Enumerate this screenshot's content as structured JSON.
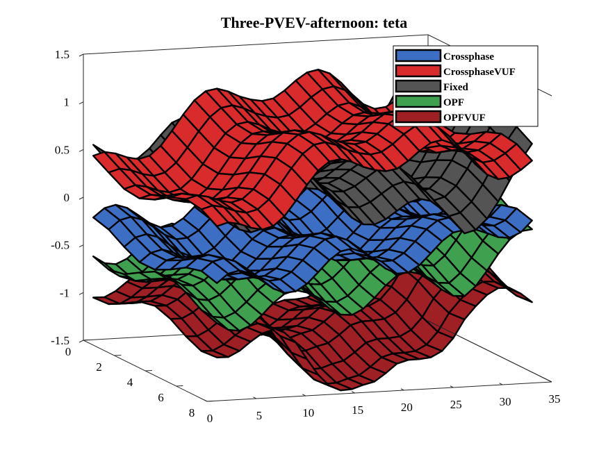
{
  "chart_data": {
    "type": "surface3d",
    "title": "Three-PVEV-afternoon: teta",
    "xlabel": "",
    "ylabel": "",
    "zlabel": "",
    "xlim": [
      0,
      35
    ],
    "ylim": [
      0,
      8
    ],
    "zlim": [
      -1.5,
      1.5
    ],
    "x_ticks": [
      "0",
      "5",
      "10",
      "15",
      "20",
      "25",
      "30",
      "35"
    ],
    "y_ticks": [
      "0",
      "2",
      "4",
      "6",
      "8"
    ],
    "z_ticks": [
      "1.5",
      "1",
      "0.5",
      "0",
      "-0.5",
      "-1",
      "-1.5"
    ],
    "legend_position": "top-right",
    "series": [
      {
        "name": "Crossphase",
        "color": "#3c6fc4",
        "levels": [
          -0.45,
          -0.3,
          -0.2,
          -0.1,
          0.35
        ]
      },
      {
        "name": "CrossphaseVUF",
        "color": "#d92b2b",
        "levels": [
          0.1,
          0.6,
          1.0,
          0.9,
          0.75
        ]
      },
      {
        "name": "Fixed",
        "color": "#545454",
        "levels": [
          0.4,
          0.6,
          0.5,
          0.3,
          1.1
        ]
      },
      {
        "name": "OPF",
        "color": "#3fa14f",
        "levels": [
          -0.5,
          -0.45,
          -0.35,
          -0.25,
          0.2
        ]
      },
      {
        "name": "OPFVUF",
        "color": "#9e1f24",
        "levels": [
          -0.75,
          -0.9,
          -1.45,
          -0.6,
          -0.5
        ]
      }
    ]
  }
}
